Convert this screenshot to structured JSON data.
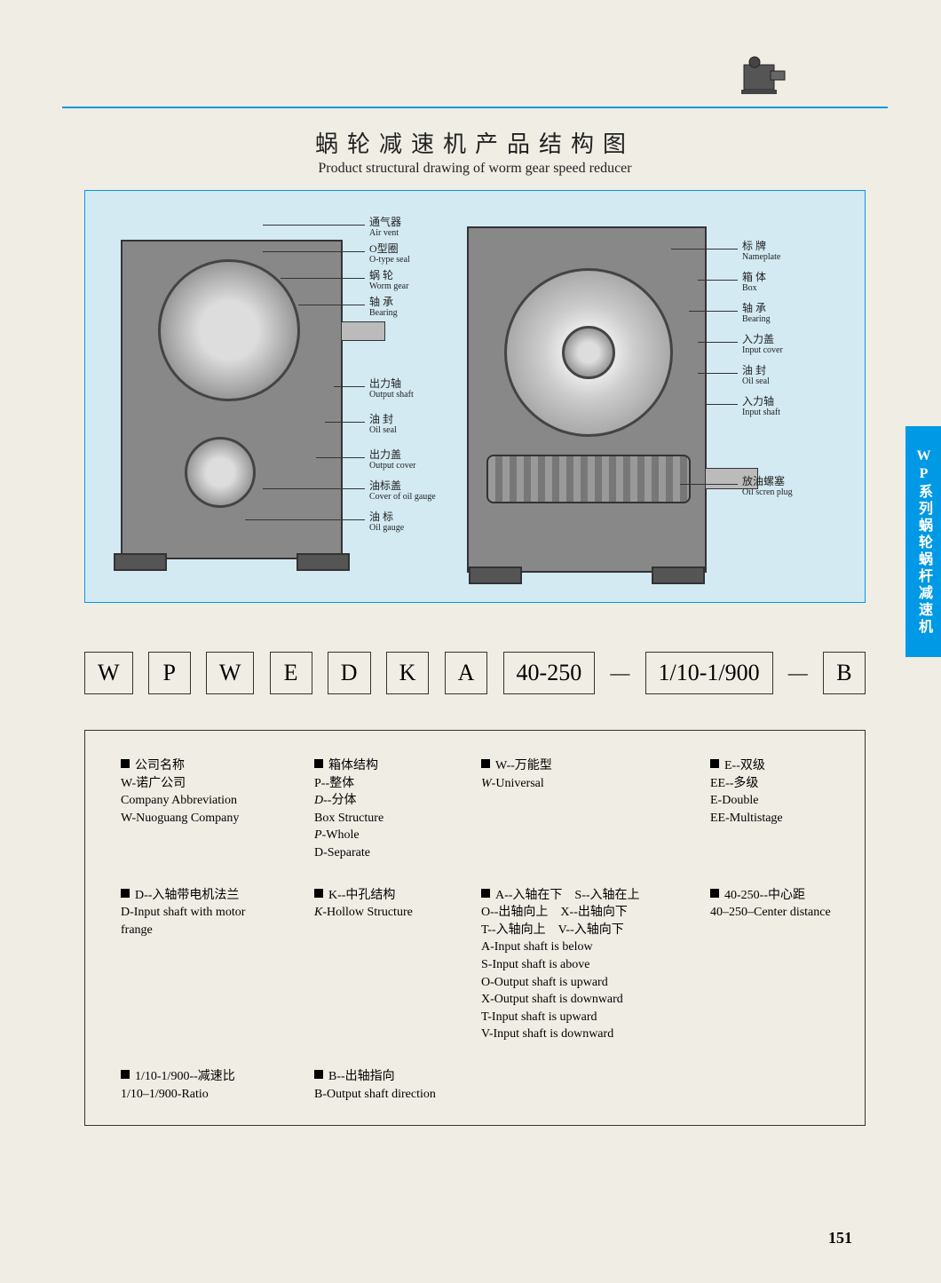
{
  "colors": {
    "page_bg": "#f0ede4",
    "accent": "#0099e5",
    "diagram_bg": "#d3eaf3",
    "text": "#222222",
    "border": "#333333"
  },
  "side_tab": "WP系列蜗轮蜗杆减速机",
  "title": {
    "cn": "蜗轮减速机产品结构图",
    "en": "Product structural drawing of worm gear speed reducer"
  },
  "callouts_left": [
    {
      "cn": "通气器",
      "en": "Air vent"
    },
    {
      "cn": "O型圈",
      "en": "O-type seal"
    },
    {
      "cn": "蜗 轮",
      "en": "Worm gear"
    },
    {
      "cn": "轴 承",
      "en": "Bearing"
    },
    {
      "cn": "出力轴",
      "en": "Output shaft"
    },
    {
      "cn": "油 封",
      "en": "Oil seal"
    },
    {
      "cn": "出力盖",
      "en": "Output cover"
    },
    {
      "cn": "油标盖",
      "en": "Cover of oil gauge"
    },
    {
      "cn": "油 标",
      "en": "Oil gauge"
    }
  ],
  "callouts_right": [
    {
      "cn": "标 牌",
      "en": "Nameplate"
    },
    {
      "cn": "箱 体",
      "en": "Box"
    },
    {
      "cn": "轴 承",
      "en": "Bearing"
    },
    {
      "cn": "入力盖",
      "en": "Input cover"
    },
    {
      "cn": "油 封",
      "en": "Oil seal"
    },
    {
      "cn": "入力轴",
      "en": "Input shaft"
    },
    {
      "cn": "放油螺塞",
      "en": "Oil scren plug"
    }
  ],
  "code_boxes": [
    "W",
    "P",
    "W",
    "E",
    "D",
    "K",
    "A",
    "40-250",
    "1/10-1/900",
    "B"
  ],
  "legend": [
    [
      {
        "head": "公司名称",
        "lines": [
          "W-诺广公司",
          "Company Abbreviation",
          "W-Nuoguang Company"
        ]
      },
      {
        "head": "箱体结构",
        "lines": [
          "P--整体",
          "<i>D</i>--分体",
          "Box Structure",
          "<i>P</i>-Whole",
          "D-Separate"
        ]
      },
      {
        "head": "W--万能型",
        "lines": [
          "<i>W</i>-Universal"
        ]
      },
      {
        "head": "E--双级",
        "lines": [
          "EE--多级",
          "E-Double",
          "EE-Multistage"
        ]
      }
    ],
    [
      {
        "head": "D--入轴带电机法兰",
        "lines": [
          "D-Input shaft with motor",
          "frange"
        ]
      },
      {
        "head": "K--中孔结构",
        "lines": [
          "<i>K</i>-Hollow Structure"
        ]
      },
      {
        "head": "A--入轴在下　S--入轴在上",
        "lines": [
          "O--出轴向上　X--出轴向下",
          "T--入轴向上　V--入轴向下",
          "A-Input shaft is below",
          "S-Input shaft is above",
          "O-Output shaft is upward",
          "X-Output shaft is downward",
          "T-Input shaft is upward",
          "V-Input shaft is downward"
        ]
      },
      {
        "head": "40-250--中心距",
        "lines": [
          "40–250–Center distance"
        ]
      }
    ],
    [
      {
        "head": "1/10-1/900--减速比",
        "lines": [
          "1/10–1/900-Ratio"
        ]
      },
      {
        "head": "B--出轴指向",
        "lines": [
          "B-Output shaft direction"
        ]
      },
      null,
      null
    ]
  ],
  "page_number": "151"
}
